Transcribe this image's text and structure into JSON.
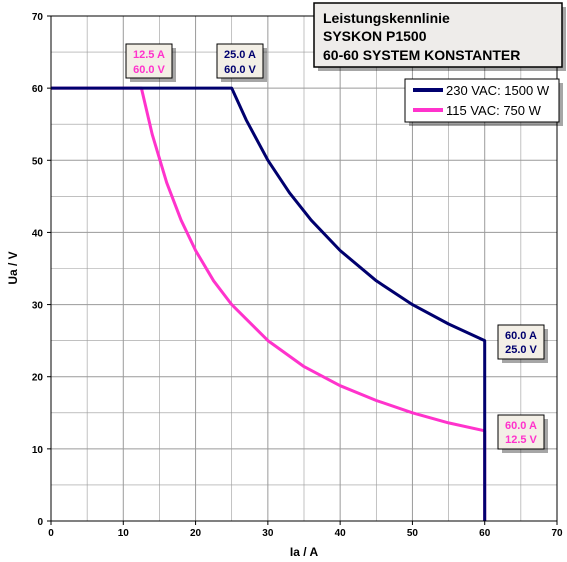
{
  "chart_data": {
    "type": "line",
    "title_lines": [
      "Leistungskennlinie",
      "SYSKON P1500",
      "60-60 SYSTEM KONSTANTER"
    ],
    "xlabel": "Ia / A",
    "ylabel": "Ua / V",
    "xlim": [
      0,
      70
    ],
    "ylim": [
      0,
      70
    ],
    "xticks": [
      0,
      10,
      20,
      30,
      40,
      50,
      60,
      70
    ],
    "yticks": [
      0,
      10,
      20,
      30,
      40,
      50,
      60,
      70
    ],
    "grid": true,
    "legend_position": "top-right",
    "series": [
      {
        "name": "230 VAC: 1500 W",
        "color": "#00006e",
        "x": [
          0,
          25,
          27,
          30,
          33,
          36,
          40,
          45,
          50,
          55,
          60,
          60
        ],
        "y": [
          60,
          60,
          55.6,
          50,
          45.5,
          41.7,
          37.5,
          33.3,
          30,
          27.3,
          25,
          0
        ]
      },
      {
        "name": "115 VAC: 750 W",
        "color": "#ff33cc",
        "x": [
          0,
          12.5,
          14,
          16,
          18,
          20,
          22.5,
          25,
          30,
          35,
          40,
          45,
          50,
          55,
          60,
          60
        ],
        "y": [
          60,
          60,
          53.6,
          46.9,
          41.7,
          37.5,
          33.3,
          30,
          25,
          21.4,
          18.75,
          16.7,
          15,
          13.6,
          12.5,
          0
        ]
      }
    ],
    "annotations": [
      {
        "lines": [
          "12.5 A",
          "60.0 V"
        ],
        "color": "#ff33cc"
      },
      {
        "lines": [
          "25.0 A",
          "60.0 V"
        ],
        "color": "#00006e"
      },
      {
        "lines": [
          "60.0 A",
          "25.0 V"
        ],
        "color": "#00006e"
      },
      {
        "lines": [
          "60.0 A",
          "12.5 V"
        ],
        "color": "#ff33cc"
      }
    ]
  }
}
